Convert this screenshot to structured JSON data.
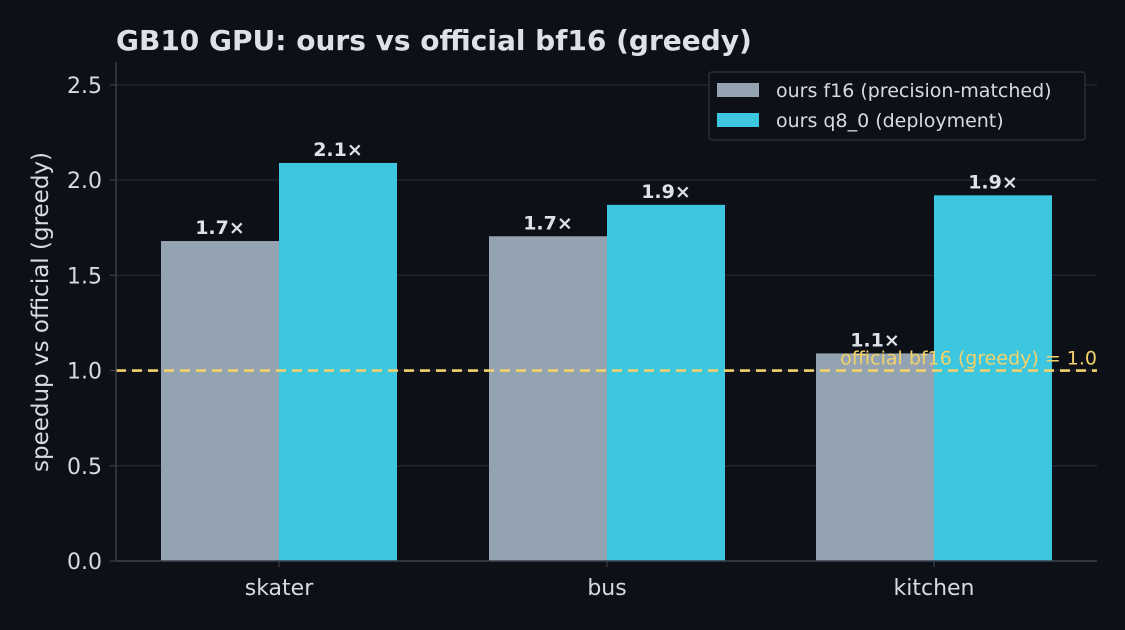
{
  "chart_data": {
    "type": "bar",
    "title": "GB10 GPU: ours vs official bf16 (greedy)",
    "xlabel": "",
    "ylabel": "speedup vs official (greedy)",
    "categories": [
      "skater",
      "bus",
      "kitchen"
    ],
    "series": [
      {
        "name": "ours f16 (precision-matched)",
        "values": [
          1.68,
          1.705,
          1.09
        ],
        "labels": [
          "1.7×",
          "1.7×",
          "1.1×"
        ]
      },
      {
        "name": "ours q8_0 (deployment)",
        "values": [
          2.09,
          1.87,
          1.92
        ],
        "labels": [
          "2.1×",
          "1.9×",
          "1.9×"
        ]
      }
    ],
    "ylim": [
      0,
      2.62
    ],
    "yticks": [
      "0.0",
      "0.5",
      "1.0",
      "1.5",
      "2.0",
      "2.5"
    ],
    "reference_line": {
      "value": 1.0,
      "label": "official bf16 (greedy) = 1.0"
    },
    "grid": "horizontal",
    "legend_position": "top-right"
  },
  "colors": {
    "background": "#0d1017",
    "series": [
      "#94a3b1",
      "#3dc6df"
    ],
    "reference": "#f4d26a",
    "grid": "#252b36",
    "axis": "#3a414d"
  }
}
